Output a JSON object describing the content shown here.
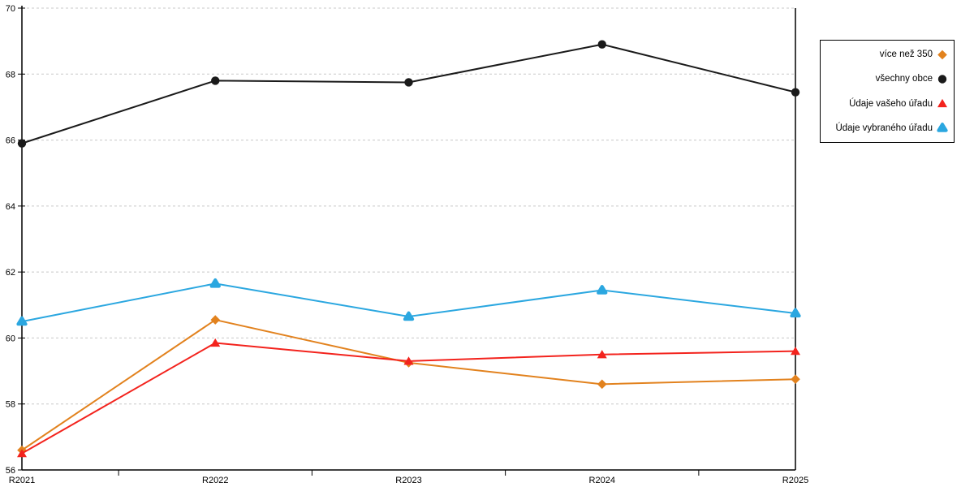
{
  "chart_data": {
    "type": "line",
    "title": "",
    "xlabel": "",
    "ylabel": "",
    "categories": [
      "R2021",
      "R2022",
      "R2023",
      "R2024",
      "R2025"
    ],
    "series": [
      {
        "name": "více než 350",
        "color": "#E2821E",
        "marker": "diamond",
        "values": [
          56.6,
          60.55,
          59.25,
          58.6,
          58.75
        ]
      },
      {
        "name": "všechny obce",
        "color": "#1A1A1A",
        "marker": "circle",
        "values": [
          65.9,
          67.8,
          67.75,
          68.9,
          67.45
        ]
      },
      {
        "name": "Údaje vašeho úřadu",
        "color": "#F3231D",
        "marker": "triangle",
        "values": [
          56.5,
          59.85,
          59.3,
          59.5,
          59.6
        ]
      },
      {
        "name": "Údaje vybraného úřadu",
        "color": "#2BA7E0",
        "marker": "rounded-triangle",
        "values": [
          60.5,
          61.65,
          60.65,
          61.45,
          60.75
        ]
      }
    ],
    "ylim": [
      56,
      70
    ],
    "yticks": [
      56,
      58,
      60,
      62,
      64,
      66,
      68,
      70
    ],
    "ytick_step": 2,
    "grid": "horizontal-dashed",
    "grid_color": "#C8C8C8",
    "axis_color": "#000000",
    "legend_position": "outside-top-right",
    "line_width": 2
  }
}
